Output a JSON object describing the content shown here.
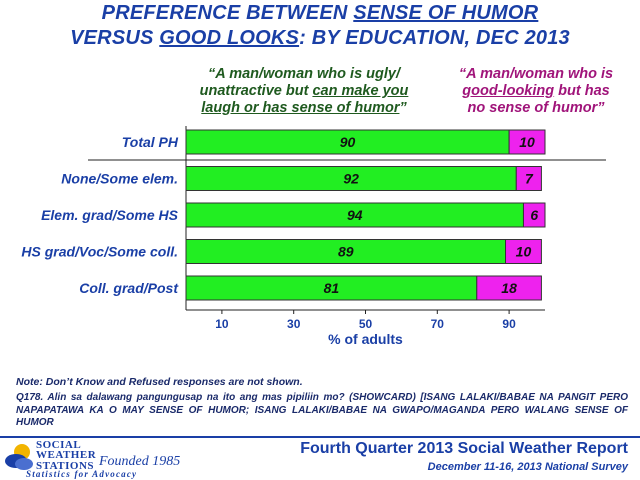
{
  "title": {
    "line1_pre": "PREFERENCE BETWEEN ",
    "line1_u": "SENSE OF HUMOR",
    "line2_pre": "VERSUS ",
    "line2_u": "GOOD LOOKS",
    "line2_post": ": BY EDUCATION, DEC 2013"
  },
  "headers": {
    "left_l1": "“A man/woman who is ugly/",
    "left_l2_pre": "unattractive but ",
    "left_l2_u": "can make you",
    "left_l3_u": "laugh or has sense of humor",
    "left_l3_post": "”",
    "right_l1": "“A man/woman who is",
    "right_l2_u": "good-looking",
    "right_l2_post": " but has",
    "right_l3": "no sense of humor”"
  },
  "chart_data": {
    "type": "bar",
    "orientation": "horizontal",
    "stacked": true,
    "categories": [
      "Total PH",
      "None/Some elem.",
      "Elem. grad/Some HS",
      "HS grad/Voc/Some coll.",
      "Coll. grad/Post"
    ],
    "series": [
      {
        "name": "“A man/woman who is ugly/ unattractive but can make you laugh or has sense of humor”",
        "values": [
          90,
          92,
          94,
          89,
          81
        ],
        "color": "#22ee22"
      },
      {
        "name": "“A man/woman who is good-looking but has no sense of humor”",
        "values": [
          10,
          7,
          6,
          10,
          18
        ],
        "color": "#ee22ee"
      }
    ],
    "x_ticks": [
      10,
      30,
      50,
      70,
      90
    ],
    "xlim": [
      0,
      100
    ],
    "xlabel": "% of adults"
  },
  "note": "Note: Don’t Know and Refused responses are not shown.",
  "question": "Q178. Alin sa dalawang pangungusap na ito ang mas pipiliin mo? (SHOWCARD) [ISANG LALAKI/BABAE NA PANGIT PERO NAPAPATAWA KA O MAY SENSE OF HUMOR; ISANG LALAKI/BABAE NA GWAPO/MAGANDA PERO WALANG SENSE OF HUMOR",
  "logo": {
    "line1": "SOCIAL",
    "line2": "WEATHER",
    "line3": "STATIONS",
    "founded": "Founded 1985",
    "tagline": "Statistics for Advocacy"
  },
  "footer": {
    "title": "Fourth Quarter 2013 Social Weather Report",
    "subtitle": "December 11-16, 2013 National Survey"
  }
}
